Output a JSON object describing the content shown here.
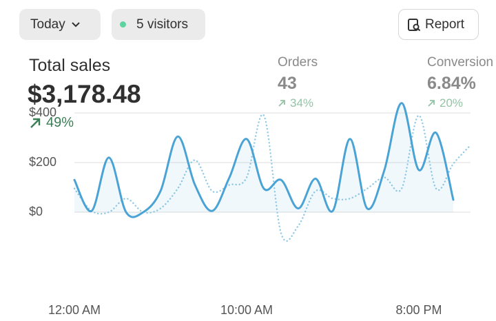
{
  "header": {
    "period": "Today",
    "visitors": "5 visitors",
    "report": "Report"
  },
  "metrics": [
    {
      "label": "Total sales",
      "value": "$3,178.48",
      "change": "49%"
    },
    {
      "label": "Orders",
      "value": "43",
      "change": "34%"
    },
    {
      "label": "Conversion",
      "value": "6.84%",
      "change": "20%"
    }
  ],
  "chart_data": {
    "type": "line",
    "x": [
      0,
      1,
      2,
      3,
      4,
      5,
      6,
      7,
      8,
      9,
      10,
      11,
      12,
      13,
      14,
      15,
      16,
      17,
      18,
      19,
      20,
      21,
      22,
      23
    ],
    "series": [
      {
        "color": "#4aa3d4",
        "area": true,
        "values": [
          130,
          5,
          220,
          0,
          0,
          85,
          305,
          110,
          5,
          140,
          295,
          95,
          130,
          15,
          135,
          5,
          295,
          15,
          170,
          440,
          170,
          320,
          50,
          null
        ]
      },
      {
        "color": "#8ecae6",
        "dashed": true,
        "values": [
          95,
          5,
          0,
          55,
          0,
          15,
          95,
          210,
          85,
          110,
          140,
          390,
          -85,
          -55,
          85,
          55,
          55,
          95,
          140,
          95,
          390,
          95,
          195,
          270
        ]
      }
    ],
    "xlim": [
      0,
      23
    ],
    "xticks": [
      {
        "value": 0,
        "label": "12:00 AM"
      },
      {
        "value": 10,
        "label": "10:00 AM"
      },
      {
        "value": 20,
        "label": "8:00 PM"
      }
    ],
    "ylim": [
      -100,
      460
    ],
    "yticks": [
      {
        "value": 0,
        "label": "$0"
      },
      {
        "value": 200,
        "label": "$200"
      },
      {
        "value": 400,
        "label": "$400"
      }
    ],
    "grid": true
  }
}
